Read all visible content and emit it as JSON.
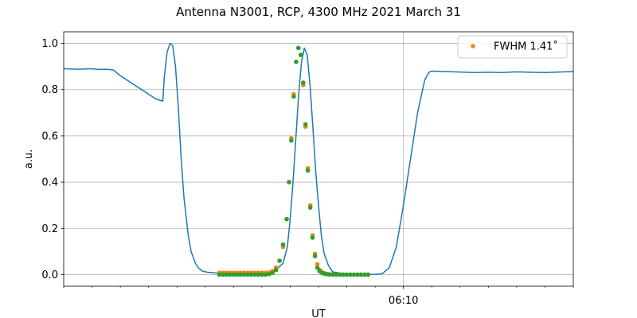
{
  "chart_data": {
    "type": "line",
    "title": "Antenna N3001, RCP, 4300 MHz 2021 March 31",
    "xlabel": "UT",
    "ylabel": "a.u.",
    "xlim_minutes": [
      0,
      36
    ],
    "x_ticks": [
      {
        "minute": 24,
        "label": "06:10"
      }
    ],
    "ylim": [
      -0.05,
      1.05
    ],
    "y_ticks": [
      0.0,
      0.2,
      0.4,
      0.6,
      0.8,
      1.0
    ],
    "y_tick_labels": [
      "0.0",
      "0.2",
      "0.4",
      "0.6",
      "0.8",
      "1.0"
    ],
    "grid": true,
    "legend": {
      "placement": "top-right",
      "entries": [
        {
          "label": "FWHM 1.41$^\\circ$",
          "display": "FWHM 1.41˚",
          "color": "#ff7f0e"
        }
      ]
    },
    "series": [
      {
        "style": "line",
        "color": "#1f77b4",
        "x": [
          0,
          1,
          2,
          2.5,
          3,
          3.5,
          4,
          5,
          6,
          6.5,
          7,
          7.1,
          7.3,
          7.5,
          7.7,
          7.9,
          8.1,
          8.3,
          8.5,
          8.8,
          9.0,
          9.3,
          9.5,
          9.8,
          10.2,
          10.6,
          11,
          11.5,
          12,
          13,
          14,
          14.5,
          15,
          15.5,
          15.8,
          16.0,
          16.2,
          16.4,
          16.6,
          16.8,
          17.0,
          17.2,
          17.4,
          17.6,
          17.8,
          18.0,
          18.2,
          18.4,
          18.7,
          19,
          20,
          21,
          22,
          22.5,
          23,
          23.5,
          24,
          24.5,
          25,
          25.5,
          25.8,
          26,
          27,
          28,
          29,
          30,
          31,
          32,
          33,
          34,
          35,
          36
        ],
        "y": [
          0.89,
          0.888,
          0.89,
          0.887,
          0.888,
          0.885,
          0.86,
          0.82,
          0.78,
          0.76,
          0.75,
          0.85,
          0.96,
          1.0,
          0.99,
          0.9,
          0.72,
          0.5,
          0.33,
          0.17,
          0.1,
          0.05,
          0.03,
          0.015,
          0.01,
          0.008,
          0.006,
          0.006,
          0.006,
          0.006,
          0.007,
          0.012,
          0.02,
          0.05,
          0.12,
          0.24,
          0.4,
          0.59,
          0.78,
          0.92,
          0.98,
          0.95,
          0.82,
          0.64,
          0.45,
          0.3,
          0.17,
          0.09,
          0.04,
          0.012,
          0.002,
          0.0,
          0.001,
          0.004,
          0.03,
          0.12,
          0.3,
          0.5,
          0.7,
          0.84,
          0.875,
          0.88,
          0.878,
          0.876,
          0.874,
          0.875,
          0.874,
          0.877,
          0.875,
          0.874,
          0.876,
          0.878
        ]
      },
      {
        "name": "FWHM 1.41˚",
        "style": "points",
        "color": "#ff7f0e",
        "x": [
          11.0,
          11.25,
          11.5,
          11.75,
          12.0,
          12.25,
          12.5,
          12.75,
          13.0,
          13.25,
          13.5,
          13.75,
          14.0,
          14.25,
          14.5,
          14.75,
          15.0,
          15.25,
          15.5,
          15.75,
          15.92,
          16.08,
          16.25,
          16.42,
          16.58,
          16.75,
          16.92,
          17.08,
          17.25,
          17.42,
          17.58,
          17.75,
          17.92,
          18.08,
          18.25,
          18.42,
          18.58,
          18.75,
          19.0,
          19.25,
          19.5,
          19.75,
          20.0,
          20.25,
          20.5,
          20.75,
          21.0,
          21.25,
          21.5
        ],
        "y": [
          0.008,
          0.008,
          0.008,
          0.008,
          0.008,
          0.008,
          0.008,
          0.008,
          0.008,
          0.008,
          0.008,
          0.008,
          0.008,
          0.008,
          0.009,
          0.015,
          0.03,
          0.06,
          0.12,
          0.24,
          0.4,
          0.59,
          0.78,
          0.92,
          0.98,
          0.95,
          0.82,
          0.64,
          0.46,
          0.3,
          0.17,
          0.09,
          0.045,
          0.02,
          0.01,
          0.006,
          0.003,
          0.002,
          0.001,
          0.0,
          0.0,
          0.0,
          0.0,
          0.0,
          0.0,
          0.0,
          0.0,
          0.0,
          0.0
        ]
      },
      {
        "style": "points",
        "color": "#2ca02c",
        "x": [
          11.0,
          11.25,
          11.5,
          11.75,
          12.0,
          12.25,
          12.5,
          12.75,
          13.0,
          13.25,
          13.5,
          13.75,
          14.0,
          14.25,
          14.5,
          14.75,
          15.0,
          15.25,
          15.5,
          15.75,
          15.92,
          16.08,
          16.25,
          16.42,
          16.58,
          16.75,
          16.92,
          17.08,
          17.25,
          17.42,
          17.58,
          17.75,
          17.92,
          18.08,
          18.25,
          18.42,
          18.58,
          18.75,
          19.0,
          19.25,
          19.5,
          19.75,
          20.0,
          20.25,
          20.5,
          20.75,
          21.0,
          21.25,
          21.5
        ],
        "y": [
          0.0,
          0.0,
          0.0,
          0.0,
          0.0,
          0.0,
          0.0,
          0.0,
          0.0,
          0.0,
          0.0,
          0.0,
          0.0,
          0.0,
          0.002,
          0.008,
          0.02,
          0.06,
          0.13,
          0.24,
          0.4,
          0.58,
          0.77,
          0.92,
          0.98,
          0.95,
          0.83,
          0.65,
          0.45,
          0.29,
          0.16,
          0.08,
          0.03,
          0.015,
          0.008,
          0.004,
          0.002,
          0.001,
          0.0,
          0.0,
          0.0,
          0.0,
          0.0,
          0.0,
          0.0,
          0.0,
          0.0,
          0.0,
          0.0
        ]
      }
    ]
  }
}
